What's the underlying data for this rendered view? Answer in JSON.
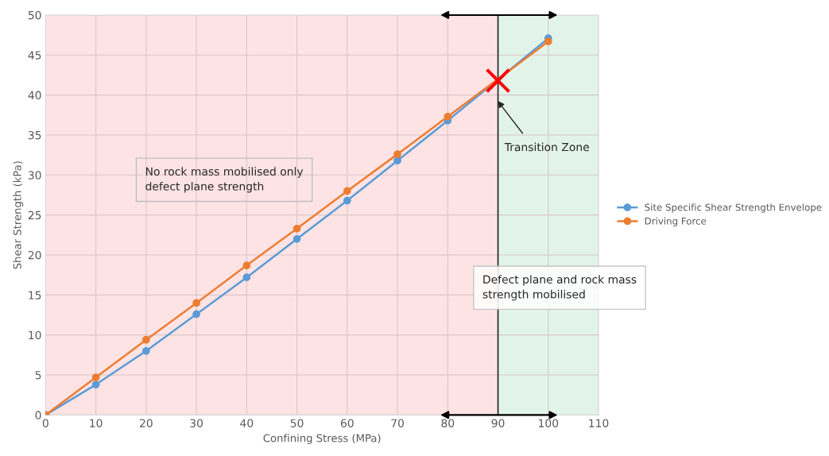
{
  "chart_data": {
    "type": "line",
    "xlabel": "Confining Stress (MPa)",
    "ylabel": "Shear Strength (kPa)",
    "xlim": [
      0,
      110
    ],
    "xticks": [
      0,
      10,
      20,
      30,
      40,
      50,
      60,
      70,
      80,
      90,
      100,
      110
    ],
    "ylim": [
      0,
      50
    ],
    "yticks": [
      0,
      5,
      10,
      15,
      20,
      25,
      30,
      35,
      40,
      45,
      50
    ],
    "grid": true,
    "legend": "right",
    "marker": "circle",
    "line_style": "solid",
    "series": [
      {
        "name": "Site Specific Shear Strength Envelope",
        "color": "#5b9bd5",
        "x": [
          0,
          10,
          20,
          30,
          40,
          50,
          60,
          70,
          80,
          100
        ],
        "values": [
          0,
          3.8,
          8.0,
          12.6,
          17.2,
          22.0,
          26.8,
          31.8,
          36.8,
          47.1
        ]
      },
      {
        "name": "Driving Force",
        "color": "#ed7d31",
        "x": [
          0,
          10,
          20,
          30,
          40,
          50,
          60,
          70,
          80,
          100
        ],
        "values": [
          0,
          4.7,
          9.4,
          14.0,
          18.7,
          23.3,
          28.0,
          32.6,
          37.3,
          46.7
        ]
      },
      {
        "type": "scatter",
        "marker": "cross",
        "color": "#ff0000",
        "x": [
          90
        ],
        "values": [
          41.8
        ]
      }
    ],
    "bands": [
      {
        "axis": "x",
        "from": 0,
        "to": 90,
        "color": "#fde3e4"
      },
      {
        "axis": "x",
        "from": 90,
        "to": 110,
        "color": "#e2f4ea"
      }
    ],
    "ref_lines": [
      {
        "axis": "x",
        "value": 90,
        "color": "#262626",
        "line_style": "solid"
      }
    ],
    "annotations": [
      "Transition Zone",
      "No rock mass mobilised only\ndefect plane strength",
      "Defect plane and rock mass\nstrength mobilised"
    ]
  }
}
